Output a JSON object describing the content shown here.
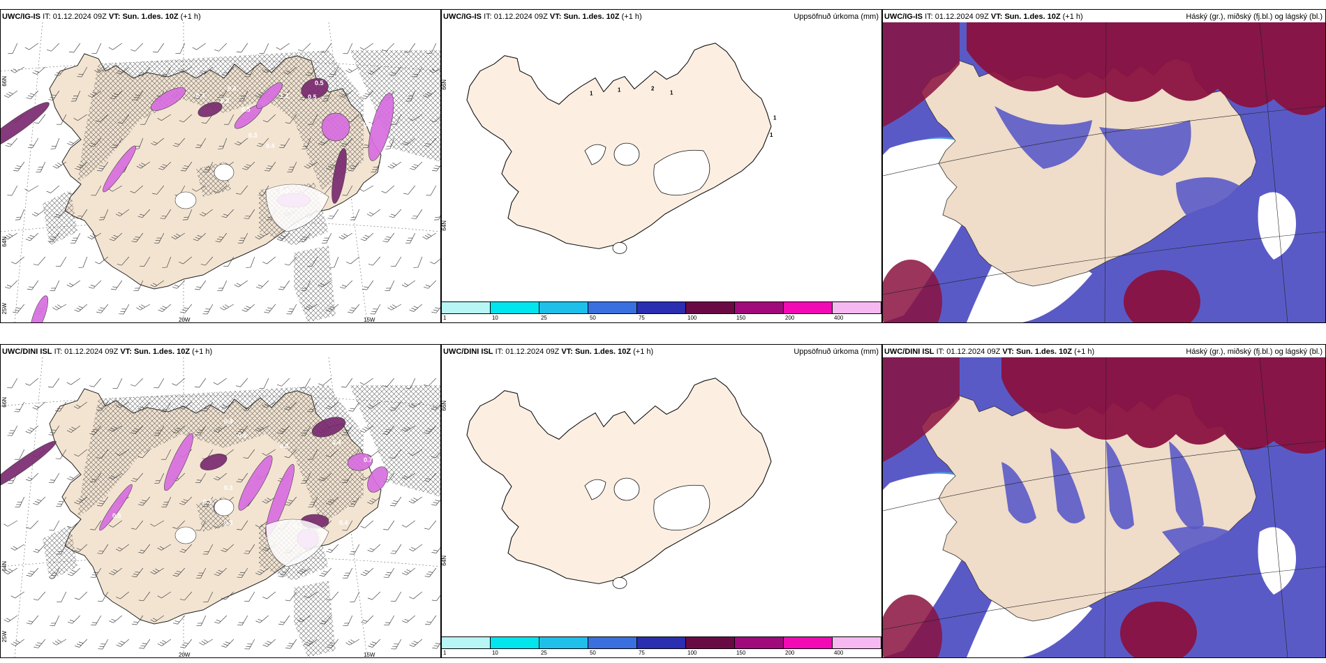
{
  "panels": {
    "p1": {
      "model": "UWC/IG-IS",
      "it_label": "IT:",
      "it_value": "01.12.2024 09Z",
      "vt_label": "VT:",
      "vt_value": "Sun. 1.des. 10Z",
      "lead": "(+1 h)",
      "right": ""
    },
    "p2": {
      "model": "UWC/IG-IS",
      "it_label": "IT:",
      "it_value": "01.12.2024 09Z",
      "vt_label": "VT:",
      "vt_value": "Sun. 1.des. 10Z",
      "lead": "(+1 h)",
      "right": "Uppsöfnuð úrkoma (mm)"
    },
    "p3": {
      "model": "UWC/IG-IS",
      "it_label": "IT:",
      "it_value": "01.12.2024 09Z",
      "vt_label": "VT:",
      "vt_value": "Sun. 1.des. 10Z",
      "lead": "(+1 h)",
      "right": "Háský (gr.), miðský (fj.bl.) og lágský (bl.)"
    },
    "p4": {
      "model": "UWC/DINI ISL",
      "it_label": "IT:",
      "it_value": "01.12.2024 09Z",
      "vt_label": "VT:",
      "vt_value": "Sun. 1.des. 10Z",
      "lead": "(+1 h)",
      "right": ""
    },
    "p5": {
      "model": "UWC/DINI ISL",
      "it_label": "IT:",
      "it_value": "01.12.2024 09Z",
      "vt_label": "VT:",
      "vt_value": "Sun. 1.des. 10Z",
      "lead": "(+1 h)",
      "right": "Uppsöfnuð úrkoma (mm)"
    },
    "p6": {
      "model": "UWC/DINI ISL",
      "it_label": "IT:",
      "it_value": "01.12.2024 09Z",
      "vt_label": "VT:",
      "vt_value": "Sun. 1.des. 10Z",
      "lead": "(+1 h)",
      "right": "Háský (gr.), miðský (fj.bl.) og lágský (bl.)"
    }
  },
  "ticks": {
    "lat66": "66N",
    "lat64": "64N",
    "lon25": "25W",
    "lon20": "20W",
    "lon15": "15W",
    "right66": "66N",
    "right64": "64N"
  },
  "precip_labels_top": [
    "1",
    "1",
    "2",
    "1",
    "1",
    "1"
  ],
  "precip_values_top": [
    "0.5",
    "0.4",
    "0.2",
    "0.4",
    "0.3",
    "1.2",
    "0.5",
    "0.3",
    "0.4",
    "0.3",
    "0.5",
    "0.4"
  ],
  "precip_values_bottom": [
    "0.4",
    "0.5",
    "0.3",
    "0.8",
    "0.4",
    "0.7",
    "0.2",
    "0.4",
    "0.3",
    "0.3",
    "0.5"
  ],
  "colorbar": {
    "labels": [
      "1",
      "10",
      "25",
      "50",
      "75",
      "100",
      "150",
      "200",
      "400"
    ],
    "colors": [
      "#b8f5f5",
      "#00e5ee",
      "#1ec0ea",
      "#3a6fe0",
      "#2a2eb0",
      "#6a0a45",
      "#a00a7a",
      "#f20ab5",
      "#f6b8f0"
    ]
  },
  "colors": {
    "land": "#f3e4d2",
    "land_light": "#fcefe2",
    "precip": "#d86ee0",
    "precip_dark": "#7a2a70",
    "cloud_high": "#8a1240",
    "cloud_mid": "#5a5ac6",
    "cloud_low": "#4aa2e8"
  }
}
